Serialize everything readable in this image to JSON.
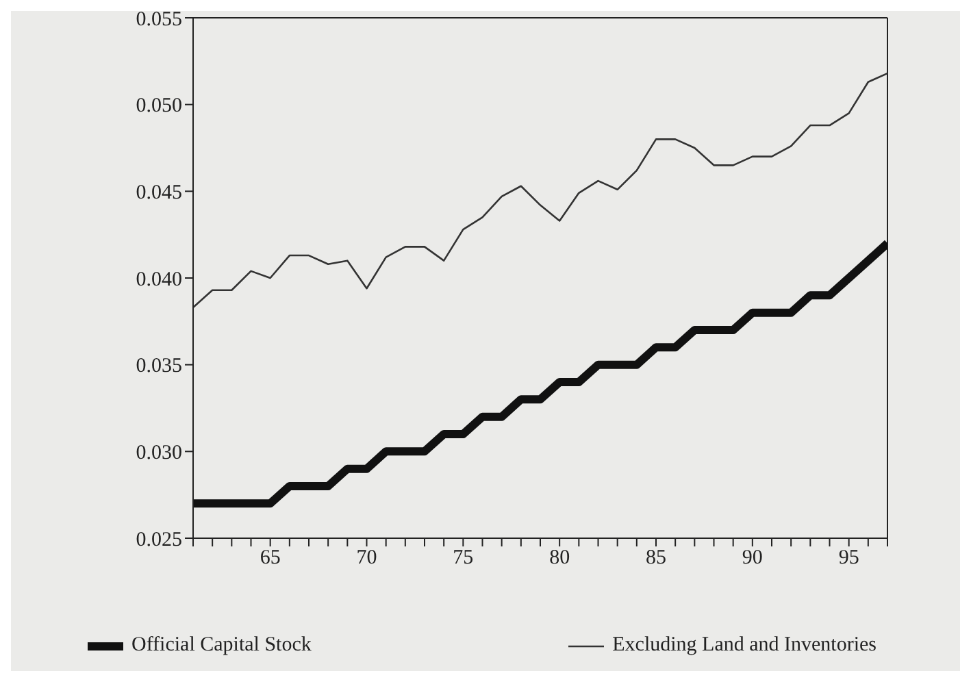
{
  "chart_data": {
    "type": "line",
    "x": [
      61,
      62,
      63,
      64,
      65,
      66,
      67,
      68,
      69,
      70,
      71,
      72,
      73,
      74,
      75,
      76,
      77,
      78,
      79,
      80,
      81,
      82,
      83,
      84,
      85,
      86,
      87,
      88,
      89,
      90,
      91,
      92,
      93,
      94,
      95,
      96,
      97
    ],
    "series": [
      {
        "name": "Official Capital Stock",
        "color": "#111111",
        "values": [
          0.027,
          0.027,
          0.027,
          0.027,
          0.027,
          0.028,
          0.028,
          0.028,
          0.029,
          0.029,
          0.03,
          0.03,
          0.03,
          0.031,
          0.031,
          0.032,
          0.032,
          0.033,
          0.033,
          0.034,
          0.034,
          0.035,
          0.035,
          0.035,
          0.036,
          0.036,
          0.037,
          0.037,
          0.037,
          0.038,
          0.038,
          0.038,
          0.039,
          0.039,
          0.04,
          0.041,
          0.042
        ]
      },
      {
        "name": "Excluding Land and Inventories",
        "color": "#333333",
        "values": [
          0.0383,
          0.0393,
          0.0393,
          0.0404,
          0.04,
          0.0413,
          0.0413,
          0.0408,
          0.041,
          0.0394,
          0.0412,
          0.0418,
          0.0418,
          0.041,
          0.0428,
          0.0435,
          0.0447,
          0.0453,
          0.0442,
          0.0433,
          0.0449,
          0.0456,
          0.0451,
          0.0462,
          0.048,
          0.048,
          0.0475,
          0.0465,
          0.0465,
          0.047,
          0.047,
          0.0476,
          0.0488,
          0.0488,
          0.0495,
          0.0513,
          0.0518
        ]
      }
    ],
    "xlim": [
      61,
      97
    ],
    "xticks": [
      {
        "value": 61,
        "label": null
      },
      {
        "value": 62,
        "label": null
      },
      {
        "value": 63,
        "label": null
      },
      {
        "value": 64,
        "label": null
      },
      65,
      {
        "value": 66,
        "label": null
      },
      {
        "value": 67,
        "label": null
      },
      {
        "value": 68,
        "label": null
      },
      {
        "value": 69,
        "label": null
      },
      70,
      {
        "value": 71,
        "label": null
      },
      {
        "value": 72,
        "label": null
      },
      {
        "value": 73,
        "label": null
      },
      {
        "value": 74,
        "label": null
      },
      75,
      {
        "value": 76,
        "label": null
      },
      {
        "value": 77,
        "label": null
      },
      {
        "value": 78,
        "label": null
      },
      {
        "value": 79,
        "label": null
      },
      80,
      {
        "value": 81,
        "label": null
      },
      {
        "value": 82,
        "label": null
      },
      {
        "value": 83,
        "label": null
      },
      {
        "value": 84,
        "label": null
      },
      85,
      {
        "value": 86,
        "label": null
      },
      {
        "value": 87,
        "label": null
      },
      {
        "value": 88,
        "label": null
      },
      {
        "value": 89,
        "label": null
      },
      90,
      {
        "value": 91,
        "label": null
      },
      {
        "value": 92,
        "label": null
      },
      {
        "value": 93,
        "label": null
      },
      {
        "value": 94,
        "label": null
      },
      95,
      {
        "value": 96,
        "label": null
      },
      {
        "value": 97,
        "label": null
      }
    ],
    "ylim": [
      0.025,
      0.055
    ],
    "yticks": [
      {
        "value": 0.025,
        "label": "0.025"
      },
      {
        "value": 0.03,
        "label": "0.030"
      },
      {
        "value": 0.035,
        "label": "0.035"
      },
      {
        "value": 0.04,
        "label": "0.040"
      },
      {
        "value": 0.045,
        "label": "0.045"
      },
      {
        "value": 0.05,
        "label": "0.050"
      },
      {
        "value": 0.055,
        "label": "0.055"
      }
    ],
    "grid": false,
    "legend": "bottom",
    "marker": "none",
    "line_style": "solid"
  }
}
